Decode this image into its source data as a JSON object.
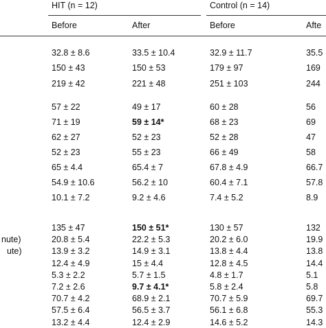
{
  "header": {
    "groups": [
      "HIT (n = 12)",
      "Control (n = 14)"
    ],
    "columns": [
      "Before",
      "After",
      "Before",
      "Afte"
    ]
  },
  "table": {
    "groups": [
      {
        "rows": [
          {
            "cells": [
              "32.8 ± 8.6",
              "33.5 ± 10.4",
              "32.9 ± 11.7",
              "35.5"
            ]
          },
          {
            "cells": [
              "150 ± 43",
              "150 ± 53",
              "179 ± 97",
              "169"
            ]
          },
          {
            "cells": [
              "219 ± 42",
              "221 ± 48",
              "251 ± 103",
              "244"
            ]
          }
        ]
      },
      {
        "rows": [
          {
            "cells": [
              "57 ± 22",
              "49 ± 17",
              "60 ± 28",
              "56"
            ]
          },
          {
            "cells": [
              "71 ± 19",
              "59 ± 14*",
              "68 ± 23",
              "69"
            ],
            "bold": 1
          },
          {
            "cells": [
              "62 ± 27",
              "52 ± 23",
              "52 ± 28",
              "47"
            ]
          },
          {
            "cells": [
              "52 ± 23",
              "55 ± 23",
              "66 ± 49",
              "58"
            ]
          },
          {
            "cells": [
              "65 ± 4.4",
              "65.4 ± 7",
              "67.8 ± 4.9",
              "66.7"
            ]
          },
          {
            "cells": [
              "54.9 ± 10.6",
              "56.2 ± 10",
              "60.4 ± 7.1",
              "57.8"
            ]
          },
          {
            "cells": [
              "10.1 ± 7.2",
              "9.2 ± 4.6",
              "7.4 ± 5.2",
              "8.9"
            ]
          }
        ]
      },
      {
        "rows": [
          {
            "cells": [
              "135 ± 47",
              "150 ± 51*",
              "130 ± 57",
              "132"
            ],
            "bold": 1
          },
          {
            "label": "nute)",
            "cells": [
              "20.8 ± 5.4",
              "22.2 ± 5.3",
              "20.2 ± 6.0",
              "19.9"
            ]
          },
          {
            "label": "ute)",
            "cells": [
              "13.9 ± 3.2",
              "14.9 ± 3.1",
              "13.8 ± 4.4",
              "13.8"
            ]
          },
          {
            "cells": [
              "12.4 ± 4.9",
              "15 ± 4.4",
              "12.8 ± 4.5",
              "14.4"
            ]
          },
          {
            "cells": [
              "5.3 ± 2.2",
              "5.7 ± 1.5",
              "4.8 ± 1.7",
              "5.1"
            ]
          },
          {
            "cells": [
              "7.2 ± 2.6",
              "9.7 ± 4.1*",
              "5.8 ± 2.4",
              "5.8"
            ],
            "bold": 1
          },
          {
            "cells": [
              "70.7 ± 4.2",
              "68.9 ± 2.1",
              "70.7 ± 5.9",
              "69.7"
            ]
          },
          {
            "cells": [
              "57.5 ± 6.4",
              "56.5 ± 3.7",
              "56.1 ± 6.8",
              "55.3"
            ]
          },
          {
            "cells": [
              "13.2 ± 4.4",
              "12.4 ± 2.9",
              "14.6 ± 5.2",
              "14.3"
            ]
          }
        ]
      }
    ]
  }
}
